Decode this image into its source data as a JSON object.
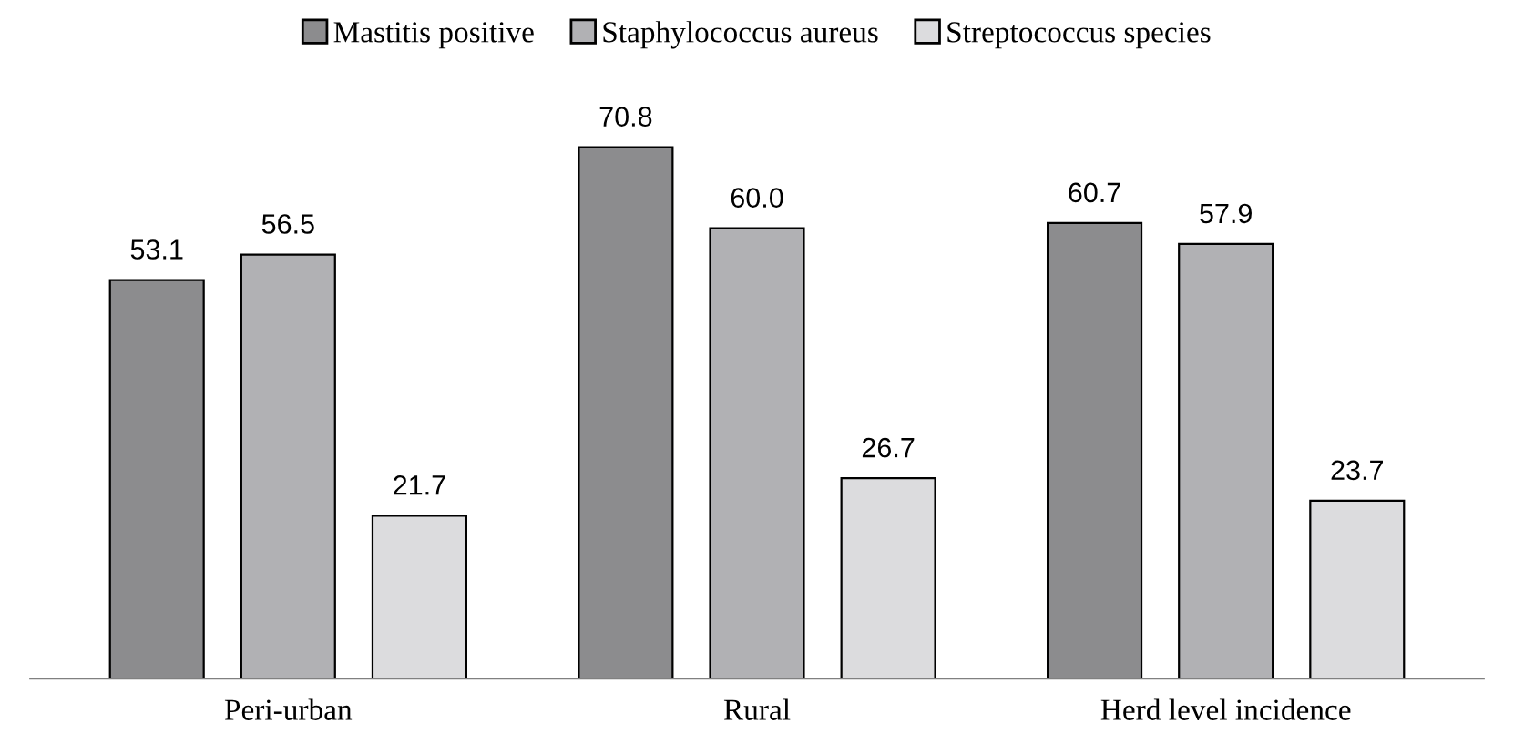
{
  "chart_data": {
    "type": "bar",
    "categories": [
      "Peri-urban",
      "Rural",
      "Herd level incidence"
    ],
    "series": [
      {
        "name": "Mastitis positive",
        "color": "#8c8c8e",
        "values": [
          53.1,
          70.8,
          60.7
        ],
        "value_labels": [
          "53.1",
          "70.8",
          "60.7"
        ]
      },
      {
        "name": "Staphylococcus aureus",
        "color": "#b1b1b4",
        "values": [
          56.5,
          60.0,
          57.9
        ],
        "value_labels": [
          "56.5",
          "60.0",
          "57.9"
        ]
      },
      {
        "name": "Streptococcus species",
        "color": "#dcdcde",
        "values": [
          21.7,
          26.7,
          23.7
        ],
        "value_labels": [
          "21.7",
          "26.7",
          "23.7"
        ]
      }
    ],
    "legend": "top",
    "grid": false
  }
}
